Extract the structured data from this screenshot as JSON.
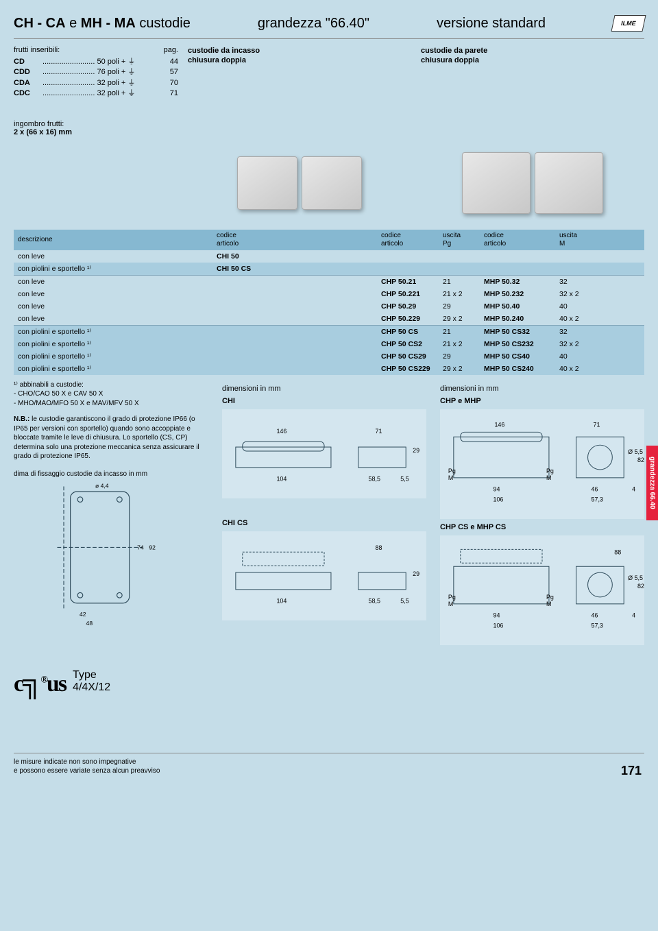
{
  "header": {
    "title_html": "CH - CA e MH - MA custodie",
    "subtitle": "grandezza \"66.40\"",
    "version": "versione standard",
    "brand": "ILME"
  },
  "frutti": {
    "heading": "frutti inseribili:",
    "page_label": "pag.",
    "rows": [
      {
        "code": "CD",
        "desc": "50  poli + ⏚",
        "page": "44"
      },
      {
        "code": "CDD",
        "desc": "76  poli + ⏚",
        "page": "57"
      },
      {
        "code": "CDA",
        "desc": "32  poli + ⏚",
        "page": "70"
      },
      {
        "code": "CDC",
        "desc": "32  poli + ⏚",
        "page": "71"
      }
    ],
    "ingombro_label": "ingombro frutti:",
    "ingombro_value": "2 x (66 x 16) mm"
  },
  "top_cols": {
    "col2_line1": "custodie da incasso",
    "col2_line2": "chiusura doppia",
    "col3_line1": "custodie da parete",
    "col3_line2": "chiusura doppia"
  },
  "table": {
    "head": {
      "desc": "descrizione",
      "codice": "codice",
      "articolo": "articolo",
      "uscita": "uscita",
      "pg": "Pg",
      "m": "M"
    },
    "rows_a": [
      {
        "desc": "con leve",
        "c1": "CHI 50"
      },
      {
        "desc": "con piolini e sportello ¹⁾",
        "c1": "CHI 50 CS"
      }
    ],
    "rows_b": [
      {
        "desc": "con leve",
        "c2": "CHP 50.21",
        "o2": "21",
        "c3": "MHP 50.32",
        "o3": "32"
      },
      {
        "desc": "con leve",
        "c2": "CHP 50.221",
        "o2": "21 x 2",
        "c3": "MHP 50.232",
        "o3": "32 x 2"
      },
      {
        "desc": "con leve",
        "c2": "CHP 50.29",
        "o2": "29",
        "c3": "MHP 50.40",
        "o3": "40"
      },
      {
        "desc": "con leve",
        "c2": "CHP 50.229",
        "o2": "29 x 2",
        "c3": "MHP 50.240",
        "o3": "40 x 2"
      }
    ],
    "rows_c": [
      {
        "desc": "con piolini e sportello ¹⁾",
        "c2": "CHP 50 CS",
        "o2": "21",
        "c3": "MHP 50 CS32",
        "o3": "32"
      },
      {
        "desc": "con piolini e sportello ¹⁾",
        "c2": "CHP 50 CS2",
        "o2": "21 x 2",
        "c3": "MHP 50 CS232",
        "o3": "32 x 2"
      },
      {
        "desc": "con piolini e sportello ¹⁾",
        "c2": "CHP 50 CS29",
        "o2": "29",
        "c3": "MHP 50 CS40",
        "o3": "40"
      },
      {
        "desc": "con piolini e sportello ¹⁾",
        "c2": "CHP 50 CS229",
        "o2": "29 x 2",
        "c3": "MHP 50 CS240",
        "o3": "40 x 2"
      }
    ]
  },
  "notes": {
    "abbinabili_head": "¹⁾ abbinabili a custodie:",
    "abbinabili_line1": "- CHO/CAO 50 X e CAV 50 X",
    "abbinabili_line2": "- MHO/MAO/MFO 50 X e MAV/MFV 50 X",
    "nb_label": "N.B.:",
    "nb_text": " le custodie garantiscono il grado di protezione IP66 (o IP65 per versioni con sportello) quando sono accoppiate e bloccate tramite le leve di chiusura. Lo sportello (CS, CP) determina solo una protezione meccanica senza assicurare il grado di protezione IP65.",
    "dima_label": "dima di fissaggio custodie da incasso in mm",
    "dim_in_mm": "dimensioni in mm"
  },
  "drawings": {
    "dima": {
      "d1": "ø 4,4",
      "d2": "74",
      "d3": "92",
      "d4": "42",
      "d5": "48"
    },
    "chi": {
      "label": "CHI",
      "w": "146",
      "w2": "71",
      "base": "104",
      "side": "58,5",
      "gap": "5,5",
      "h": "29"
    },
    "chp": {
      "label": "CHP e MHP",
      "w": "146",
      "w2": "71",
      "base": "94",
      "base2": "106",
      "side": "46",
      "side2": "57,3",
      "gap": "4",
      "h": "82",
      "pg": "Pg",
      "m": "M",
      "dia": "Ø 5,5"
    },
    "chics": {
      "label": "CHI CS",
      "lid": "88",
      "base": "104",
      "side": "58,5",
      "gap": "5,5",
      "h": "29"
    },
    "chpcs": {
      "label": "CHP CS e MHP CS",
      "lid": "88",
      "base": "94",
      "base2": "106",
      "side": "46",
      "side2": "57,3",
      "gap": "4",
      "h": "82",
      "pg": "Pg",
      "m": "M",
      "dia": "Ø 5,5"
    }
  },
  "side_tab": "grandezza 66.40",
  "cert": {
    "type": "Type",
    "rating": "4/4X/12"
  },
  "disclaimer_line1": "le misure indicate non sono impegnative",
  "disclaimer_line2": "e possono essere variate senza alcun preavviso",
  "page_number": "171",
  "colors": {
    "page_bg": "#c5dde8",
    "header_row_bg": "#86b8d1",
    "alt_row_bg": "#a8cddf",
    "side_tab_bg": "#e5213d"
  }
}
